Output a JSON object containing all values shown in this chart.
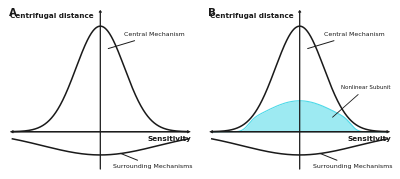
{
  "bg_color": "#ffffff",
  "panel_A_label": "A",
  "panel_B_label": "B",
  "xlabel": "Sensitivity",
  "ylabel": "Centrifugal distance",
  "label_central": "Central Mechanism",
  "label_surrounding": "Surrounding Mechanisms",
  "label_nonlinear": "Nonlinear Subunit",
  "gaussian_sigma": 0.55,
  "surrounding_scale": 0.22,
  "surrounding_sigma": 1.3,
  "x_range": [
    -2.0,
    2.0
  ],
  "cyan_color": "#4dd9e8",
  "black_color": "#1a1a1a",
  "label_fontsize": 5.2,
  "panel_label_fontsize": 7.5,
  "annot_fontsize": 4.5,
  "nonlinear_fontsize": 4.0
}
